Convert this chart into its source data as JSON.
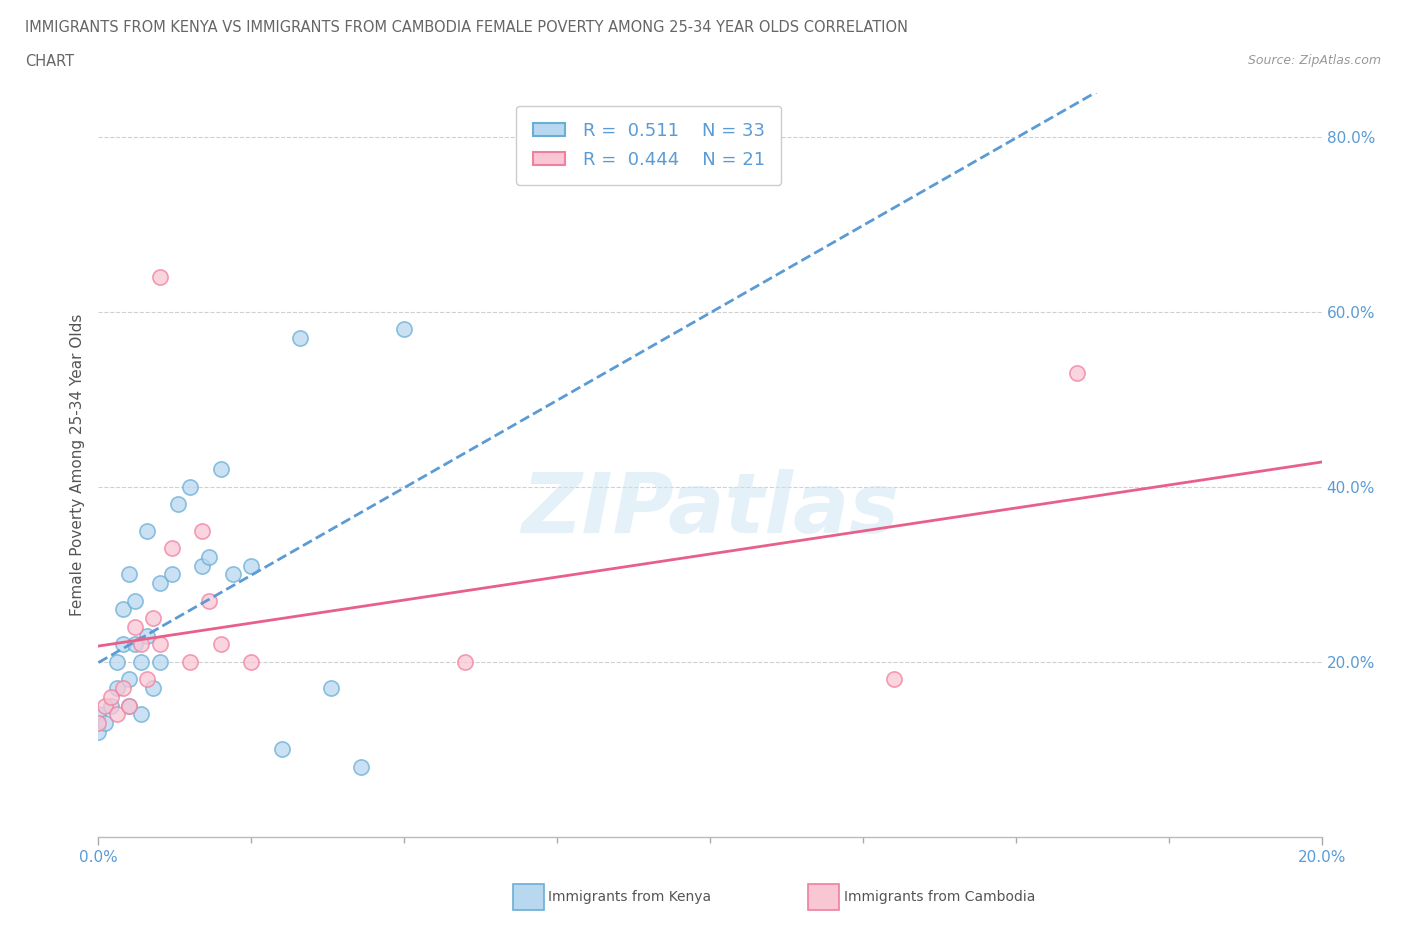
{
  "title_line1": "IMMIGRANTS FROM KENYA VS IMMIGRANTS FROM CAMBODIA FEMALE POVERTY AMONG 25-34 YEAR OLDS CORRELATION",
  "title_line2": "CHART",
  "source_text": "Source: ZipAtlas.com",
  "ylabel": "Female Poverty Among 25-34 Year Olds",
  "xlim": [
    0.0,
    0.2
  ],
  "ylim": [
    0.0,
    0.85
  ],
  "kenya_R": 0.511,
  "kenya_N": 33,
  "cambodia_R": 0.444,
  "cambodia_N": 21,
  "kenya_fill_color": "#b8d8f0",
  "kenya_edge_color": "#6aaed6",
  "cambodia_fill_color": "#f9c6d3",
  "cambodia_edge_color": "#f07fa0",
  "kenya_line_color": "#5b9bd5",
  "cambodia_line_color": "#e8608a",
  "tick_color": "#5b9bd5",
  "gridline_color": "#d0d0d0",
  "kenya_x": [
    0.0,
    0.0,
    0.001,
    0.002,
    0.003,
    0.003,
    0.004,
    0.004,
    0.005,
    0.005,
    0.005,
    0.006,
    0.006,
    0.007,
    0.007,
    0.008,
    0.008,
    0.009,
    0.01,
    0.01,
    0.012,
    0.013,
    0.015,
    0.017,
    0.018,
    0.02,
    0.022,
    0.025,
    0.03,
    0.033,
    0.038,
    0.043,
    0.05
  ],
  "kenya_y": [
    0.12,
    0.14,
    0.13,
    0.15,
    0.17,
    0.2,
    0.22,
    0.26,
    0.15,
    0.18,
    0.3,
    0.22,
    0.27,
    0.14,
    0.2,
    0.23,
    0.35,
    0.17,
    0.2,
    0.29,
    0.3,
    0.38,
    0.4,
    0.31,
    0.32,
    0.42,
    0.3,
    0.31,
    0.1,
    0.57,
    0.17,
    0.08,
    0.58
  ],
  "cambodia_x": [
    0.0,
    0.001,
    0.002,
    0.003,
    0.004,
    0.005,
    0.006,
    0.007,
    0.008,
    0.009,
    0.01,
    0.01,
    0.012,
    0.015,
    0.017,
    0.018,
    0.02,
    0.025,
    0.06,
    0.13,
    0.16
  ],
  "cambodia_y": [
    0.13,
    0.15,
    0.16,
    0.14,
    0.17,
    0.15,
    0.24,
    0.22,
    0.18,
    0.25,
    0.22,
    0.64,
    0.33,
    0.2,
    0.35,
    0.27,
    0.22,
    0.2,
    0.2,
    0.18,
    0.53
  ],
  "watermark_text": "ZIPatlas",
  "legend_label_R": "R =",
  "legend_label_N": "N ="
}
